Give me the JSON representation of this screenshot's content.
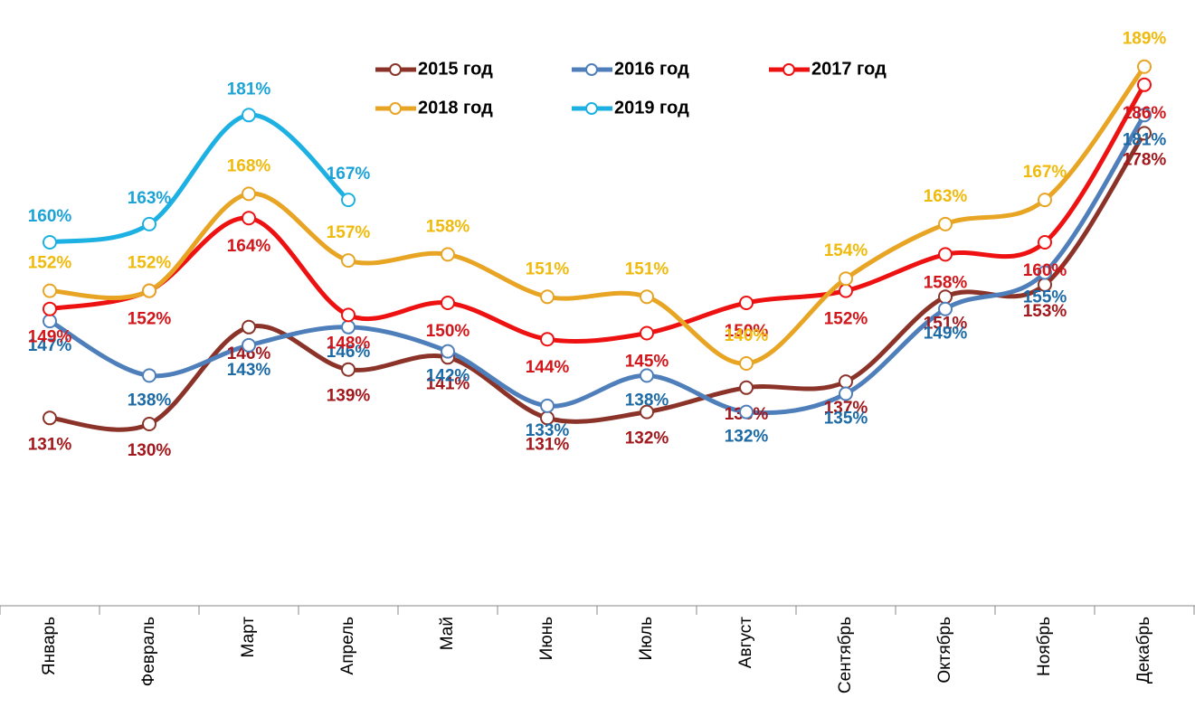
{
  "chart_data": {
    "type": "line",
    "categories": [
      "Январь",
      "Февраль",
      "Март",
      "Апрель",
      "Май",
      "Июнь",
      "Июль",
      "Август",
      "Сентябрь",
      "Октябрь",
      "Ноябрь",
      "Декабрь"
    ],
    "ylim": [
      100,
      200
    ],
    "series": [
      {
        "name": "2015 год",
        "color": "#8b3328",
        "label_color": "#a3181c",
        "values": [
          131,
          130,
          146,
          139,
          141,
          131,
          132,
          136,
          137,
          151,
          153,
          178
        ],
        "value_labels": [
          "131%",
          "130%",
          "146%",
          "139%",
          "141%",
          "131%",
          "132%",
          "136%",
          "137%",
          "151%",
          "153%",
          "178%"
        ]
      },
      {
        "name": "2016 год",
        "color": "#4f7fba",
        "label_color": "#1c6aa6",
        "values": [
          147,
          138,
          143,
          146,
          142,
          133,
          138,
          132,
          135,
          149,
          155,
          181
        ],
        "value_labels": [
          "147%",
          "138%",
          "143%",
          "146%",
          "142%",
          "133%",
          "138%",
          "132%",
          "135%",
          "149%",
          "155%",
          "181%"
        ]
      },
      {
        "name": "2017 год",
        "color": "#ee1111",
        "label_color": "#d3161a",
        "values": [
          149,
          152,
          164,
          148,
          150,
          144,
          145,
          150,
          152,
          158,
          160,
          186
        ],
        "value_labels": [
          "149%",
          "152%",
          "164%",
          "148%",
          "150%",
          "144%",
          "145%",
          "150%",
          "152%",
          "158%",
          "160%",
          "186%"
        ]
      },
      {
        "name": "2018 год",
        "color": "#e8a423",
        "label_color": "#f0ba0c",
        "values": [
          152,
          152,
          168,
          157,
          158,
          151,
          151,
          140,
          154,
          163,
          167,
          189
        ],
        "value_labels": [
          "152%",
          "152%",
          "168%",
          "157%",
          "158%",
          "151%",
          "151%",
          "140%",
          "154%",
          "163%",
          "167%",
          "189%"
        ]
      },
      {
        "name": "2019 год",
        "color": "#1cb1e2",
        "label_color": "#1ba3d8",
        "values": [
          160,
          163,
          181,
          167,
          null,
          null,
          null,
          null,
          null,
          null,
          null,
          null
        ],
        "value_labels": [
          "160%",
          "163%",
          "181%",
          "167%",
          null,
          null,
          null,
          null,
          null,
          null,
          null,
          null
        ]
      }
    ]
  }
}
